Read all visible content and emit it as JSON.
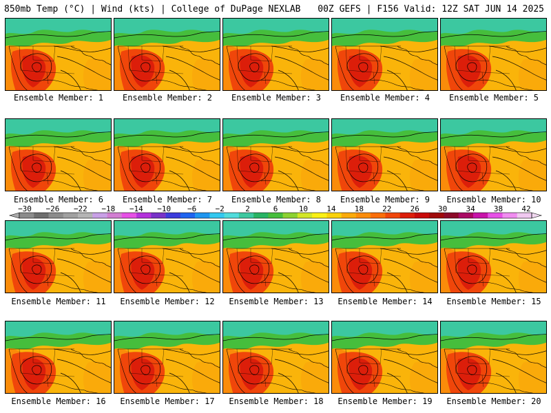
{
  "header": {
    "left": "850mb Temp (°C) | Wind (kts) | College of DuPage NEXLAB",
    "right": "00Z GEFS | F156 Valid: 12Z SAT JUN 14 2025"
  },
  "members": [
    "Ensemble Member: 1",
    "Ensemble Member: 2",
    "Ensemble Member: 3",
    "Ensemble Member: 4",
    "Ensemble Member: 5",
    "Ensemble Member: 6",
    "Ensemble Member: 7",
    "Ensemble Member: 8",
    "Ensemble Member: 9",
    "Ensemble Member: 10",
    "Ensemble Member: 11",
    "Ensemble Member: 12",
    "Ensemble Member: 13",
    "Ensemble Member: 14",
    "Ensemble Member: 15",
    "Ensemble Member: 16",
    "Ensemble Member: 17",
    "Ensemble Member: 18",
    "Ensemble Member: 19",
    "Ensemble Member: 20"
  ],
  "colorbar": {
    "labels": [
      "-30",
      "-26",
      "-22",
      "-18",
      "-14",
      "-10",
      "-6",
      "-2",
      "2",
      "6",
      "10",
      "14",
      "18",
      "22",
      "26",
      "30",
      "34",
      "38",
      "42"
    ],
    "colors": [
      "#8c8c8c",
      "#6e6e6e",
      "#8c8c8c",
      "#a0a0a0",
      "#b4b4b4",
      "#c8a0e6",
      "#d27ed2",
      "#e650e6",
      "#b432dc",
      "#7832c8",
      "#3c3cdc",
      "#1e64f0",
      "#1e96f0",
      "#32c8f0",
      "#50dcdc",
      "#3cc8a0",
      "#28b464",
      "#46be3c",
      "#8cd232",
      "#d2e628",
      "#faf014",
      "#fad20a",
      "#faaa0a",
      "#fa8c0a",
      "#fa6e0a",
      "#f0460a",
      "#dc1e0a",
      "#c80a0a",
      "#a00a0a",
      "#8c0a28",
      "#aa0a64",
      "#c814aa",
      "#e650e6",
      "#f08cf0",
      "#f0c8f0"
    ]
  }
}
